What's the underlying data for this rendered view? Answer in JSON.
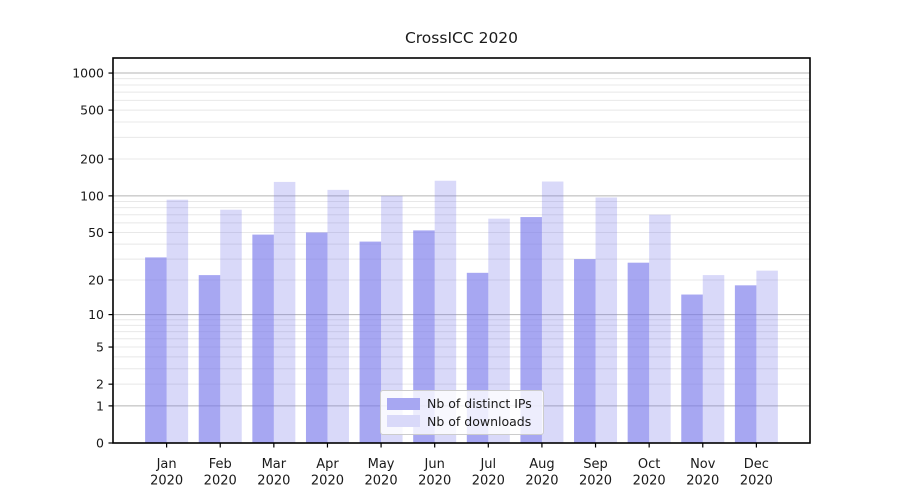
{
  "colors": {
    "background": "#ffffff",
    "bar_base": "#7878eb",
    "legend_swatches": [
      "#a7a7f2",
      "#d9d9f9"
    ],
    "grid_major": "#b4b4b4",
    "grid_minor": "#e8e8e8",
    "axis": "#000000",
    "text": "#1a1a1a",
    "legend_border": "#cccccc"
  },
  "chart_data": {
    "type": "bar",
    "title": "CrossICC 2020",
    "months": [
      "Jan",
      "Feb",
      "Mar",
      "Apr",
      "May",
      "Jun",
      "Jul",
      "Aug",
      "Sep",
      "Oct",
      "Nov",
      "Dec"
    ],
    "year": "2020",
    "series": [
      {
        "name": "Nb of distinct IPs",
        "color": "#7878eb",
        "opacity": 0.65,
        "values": [
          31,
          22,
          48,
          50,
          42,
          52,
          23,
          67,
          30,
          28,
          15,
          18
        ]
      },
      {
        "name": "Nb of downloads",
        "color": "#7878eb",
        "opacity": 0.28,
        "values": [
          93,
          77,
          130,
          112,
          100,
          133,
          65,
          131,
          97,
          70,
          22,
          24
        ]
      }
    ],
    "yticks": [
      0,
      1,
      2,
      5,
      10,
      20,
      50,
      100,
      200,
      500,
      1000
    ],
    "y_scale": "log10(1+x)",
    "ylim": [
      0,
      1330
    ],
    "xlabel": "",
    "ylabel": "",
    "grid": {
      "major": true,
      "minor": true
    },
    "legend_position": "lower center"
  }
}
